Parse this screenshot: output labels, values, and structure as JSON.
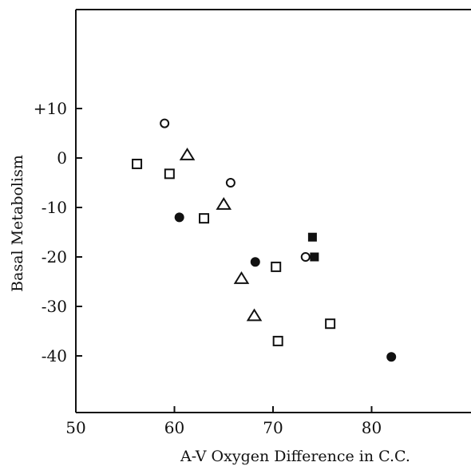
{
  "chart_data": {
    "type": "scatter",
    "title": "",
    "xlabel": "A-V Oxygen Difference in C.C.",
    "ylabel": "Basal Metabolism",
    "xlim": [
      50,
      90
    ],
    "ylim": [
      -50,
      30
    ],
    "x_ticks": [
      50,
      60,
      70,
      80
    ],
    "x_tick_labels": [
      "50",
      "60",
      "70",
      "80"
    ],
    "y_ticks": [
      10,
      0,
      -10,
      -20,
      -30,
      -40
    ],
    "y_tick_labels": [
      "+10",
      "0",
      "-10",
      "-20",
      "-30",
      "-40"
    ],
    "grid": false,
    "series": [
      {
        "marker": "open-circle",
        "points": [
          [
            59.0,
            7
          ],
          [
            65.7,
            -5
          ],
          [
            73.3,
            -20
          ]
        ]
      },
      {
        "marker": "open-square",
        "points": [
          [
            56.2,
            -1.2
          ],
          [
            59.5,
            -3.2
          ],
          [
            63.0,
            -12.2
          ],
          [
            70.3,
            -22
          ],
          [
            70.5,
            -37
          ],
          [
            75.8,
            -33.5
          ]
        ]
      },
      {
        "marker": "open-triangle",
        "points": [
          [
            61.3,
            0.5
          ],
          [
            65.0,
            -9.5
          ],
          [
            66.8,
            -24.5
          ],
          [
            68.1,
            -32
          ]
        ]
      },
      {
        "marker": "filled-circle",
        "points": [
          [
            60.5,
            -12
          ],
          [
            68.2,
            -21
          ],
          [
            82.0,
            -40.2
          ]
        ]
      },
      {
        "marker": "filled-square",
        "points": [
          [
            74.0,
            -16
          ],
          [
            74.2,
            -20
          ]
        ]
      }
    ]
  }
}
